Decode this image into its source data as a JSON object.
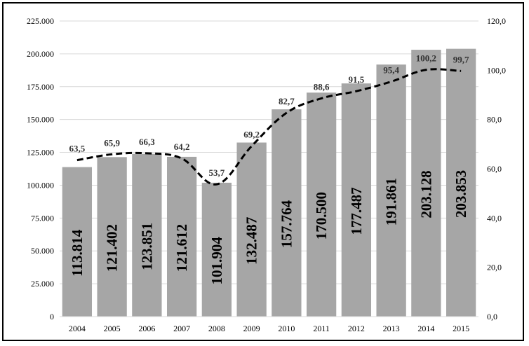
{
  "chart_data": {
    "type": "bar",
    "categories": [
      "2004",
      "2005",
      "2006",
      "2007",
      "2008",
      "2009",
      "2010",
      "2011",
      "2012",
      "2013",
      "2014",
      "2015"
    ],
    "series": [
      {
        "type": "bar",
        "values": [
          113814,
          121402,
          123851,
          121612,
          101904,
          132487,
          157764,
          170500,
          177487,
          191861,
          203128,
          203853
        ],
        "labels": [
          "113.814",
          "121.402",
          "123.851",
          "121.612",
          "101.904",
          "132.487",
          "157.764",
          "170.500",
          "177.487",
          "191.861",
          "203.128",
          "203.853"
        ],
        "axis": "left",
        "color": "#a6a6a6"
      },
      {
        "type": "line",
        "style": "dashed",
        "values": [
          63.5,
          65.9,
          66.3,
          64.2,
          53.7,
          69.2,
          82.7,
          88.6,
          91.5,
          95.4,
          100.2,
          99.7
        ],
        "labels": [
          "63,5",
          "65,9",
          "66,3",
          "64,2",
          "53,7",
          "69,2",
          "82,7",
          "88,6",
          "91,5",
          "95,4",
          "100,2",
          "99,7"
        ],
        "axis": "right",
        "color": "#000000"
      }
    ],
    "left_axis": {
      "ylim": [
        0,
        225000
      ],
      "ticks": [
        0,
        25000,
        50000,
        75000,
        100000,
        125000,
        150000,
        175000,
        200000,
        225000
      ],
      "tick_labels": [
        "0",
        "25.000",
        "50.000",
        "75.000",
        "100.000",
        "125.000",
        "150.000",
        "175.000",
        "200.000",
        "225.000"
      ]
    },
    "right_axis": {
      "ylim": [
        0,
        120
      ],
      "ticks": [
        0,
        20,
        40,
        60,
        80,
        100,
        120
      ],
      "tick_labels": [
        "0,0",
        "20,0",
        "40,0",
        "60,0",
        "80,0",
        "100,0",
        "120,0"
      ]
    },
    "title": "",
    "xlabel": "",
    "ylabel": "",
    "grid": true,
    "legend": "none"
  }
}
